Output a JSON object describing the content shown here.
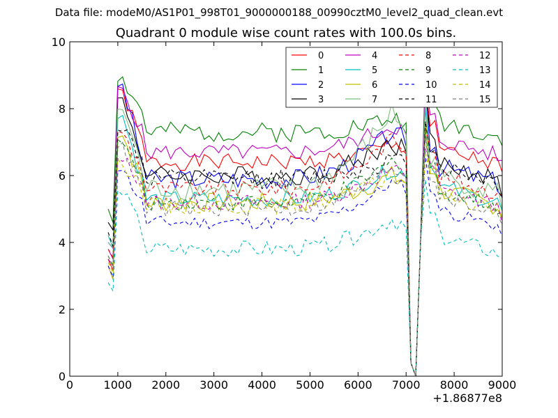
{
  "suptitle": "Data file: modeM0/AS1P01_998T01_9000000188_00990cztM0_level2_quad_clean.evt",
  "chart_data": {
    "type": "line",
    "title": "Quadrant 0 module wise count rates with 100.0s bins.",
    "xlabel": "",
    "ylabel": "",
    "x_offset_label": "+1.86877e8",
    "xlim": [
      0,
      9000
    ],
    "ylim": [
      0,
      10
    ],
    "xticks": [
      0,
      1000,
      2000,
      3000,
      4000,
      5000,
      6000,
      7000,
      8000,
      9000
    ],
    "yticks": [
      0,
      2,
      4,
      6,
      8,
      10
    ],
    "legend_location": "top-right",
    "legend_columns": 4,
    "series": [
      {
        "name": "0",
        "color": "#ff0000",
        "dash": "solid",
        "base": 6.4,
        "peak": 8.5,
        "init": 3.5,
        "rise": 0.5,
        "wig": 0.25,
        "seed": 1
      },
      {
        "name": "1",
        "color": "#008000",
        "dash": "solid",
        "base": 7.3,
        "peak": 8.9,
        "init": 5.0,
        "rise": 0.4,
        "wig": 0.3,
        "seed": 2
      },
      {
        "name": "2",
        "color": "#0000ff",
        "dash": "solid",
        "base": 5.9,
        "peak": 8.7,
        "init": 4.0,
        "rise": 1.4,
        "wig": 0.3,
        "seed": 3
      },
      {
        "name": "3",
        "color": "#000000",
        "dash": "solid",
        "base": 6.0,
        "peak": 8.3,
        "init": 4.6,
        "rise": 1.0,
        "wig": 0.3,
        "seed": 4
      },
      {
        "name": "4",
        "color": "#bf00bf",
        "dash": "solid",
        "base": 6.7,
        "peak": 8.6,
        "init": 3.8,
        "rise": 0.8,
        "wig": 0.25,
        "seed": 5
      },
      {
        "name": "5",
        "color": "#00bfbf",
        "dash": "solid",
        "base": 5.3,
        "peak": 7.8,
        "init": 4.2,
        "rise": 0.9,
        "wig": 0.25,
        "seed": 6
      },
      {
        "name": "6",
        "color": "#bfbf00",
        "dash": "solid",
        "base": 5.2,
        "peak": 7.2,
        "init": 3.3,
        "rise": 0.8,
        "wig": 0.3,
        "seed": 7
      },
      {
        "name": "7",
        "color": "#7fbf7f",
        "dash": "solid",
        "base": 5.6,
        "peak": 8.0,
        "init": 4.0,
        "rise": 2.3,
        "wig": 0.35,
        "seed": 8
      },
      {
        "name": "8",
        "color": "#ff0000",
        "dash": "dashed",
        "base": 5.6,
        "peak": 7.3,
        "init": 3.8,
        "rise": 1.5,
        "wig": 0.25,
        "seed": 9
      },
      {
        "name": "9",
        "color": "#008000",
        "dash": "dashed",
        "base": 5.2,
        "peak": 7.0,
        "init": 3.6,
        "rise": 1.2,
        "wig": 0.25,
        "seed": 10
      },
      {
        "name": "10",
        "color": "#0000ff",
        "dash": "dashed",
        "base": 4.6,
        "peak": 6.2,
        "init": 3.3,
        "rise": 1.2,
        "wig": 0.2,
        "seed": 11
      },
      {
        "name": "11",
        "color": "#000000",
        "dash": "dashed",
        "base": 5.9,
        "peak": 7.4,
        "init": 4.3,
        "rise": 0.6,
        "wig": 0.3,
        "seed": 12
      },
      {
        "name": "12",
        "color": "#bf00bf",
        "dash": "dashed",
        "base": 5.2,
        "peak": 6.5,
        "init": 3.5,
        "rise": 1.0,
        "wig": 0.25,
        "seed": 13
      },
      {
        "name": "13",
        "color": "#00bfbf",
        "dash": "dashed",
        "base": 3.8,
        "peak": 5.5,
        "init": 2.8,
        "rise": 0.9,
        "wig": 0.25,
        "seed": 14
      },
      {
        "name": "14",
        "color": "#bfbf00",
        "dash": "dashed",
        "base": 5.1,
        "peak": 6.4,
        "init": 3.4,
        "rise": 0.9,
        "wig": 0.25,
        "seed": 15
      },
      {
        "name": "15",
        "color": "#7f7f7f",
        "dash": "dashed",
        "base": 5.0,
        "peak": 6.9,
        "init": 3.6,
        "rise": 1.3,
        "wig": 0.25,
        "seed": 16
      }
    ]
  }
}
